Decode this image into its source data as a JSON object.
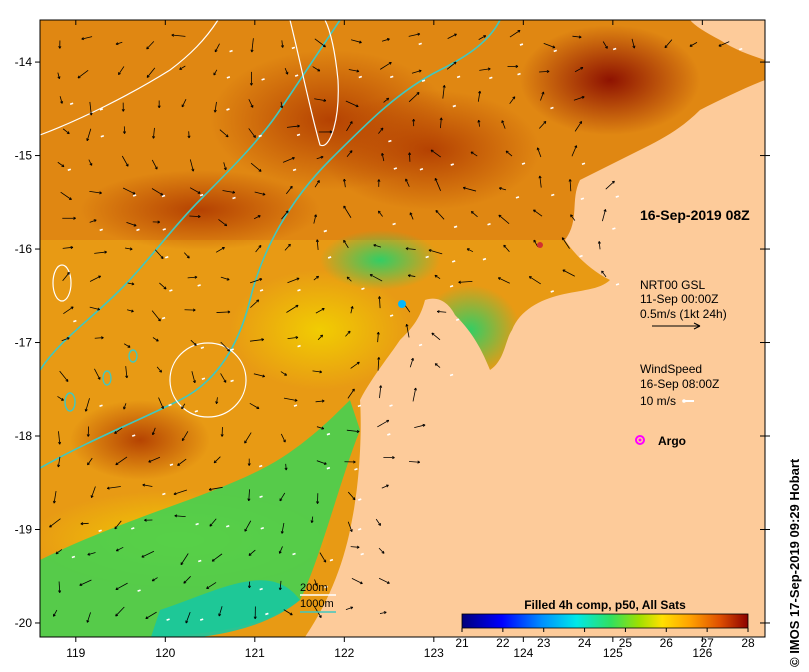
{
  "map": {
    "lon_ticks": [
      "119",
      "120",
      "121",
      "122",
      "123",
      "124",
      "125",
      "126"
    ],
    "lat_ticks": [
      "-14",
      "-15",
      "-16",
      "-17",
      "-18",
      "-19",
      "-20"
    ],
    "lon_range": [
      118.6,
      126.7
    ],
    "lat_range": [
      -20.15,
      -13.55
    ]
  },
  "annotations": {
    "date_title": "16-Sep-2019 08Z",
    "current_title": "NRT00 GSL",
    "current_time": "11-Sep 00:00Z",
    "current_scale": "0.5m/s (1kt 24h)",
    "wind_title": "WindSpeed",
    "wind_time": "16-Sep 08:00Z",
    "wind_scale": "10 m/s",
    "argo_label": "Argo"
  },
  "bathy_legend": {
    "contour_200": "200m",
    "contour_1000": "1000m"
  },
  "colorbar": {
    "title": "Filled 4h comp, p50, All Sats",
    "ticks": [
      "21",
      "22",
      "23",
      "24",
      "25",
      "26",
      "27",
      "28"
    ],
    "min": 21,
    "max": 28
  },
  "credit": "© IMOS 17-Sep-2019 09:29 Hobart",
  "colors": {
    "land": "#fdcb9a",
    "contour_200": "#ffffff",
    "contour_1000": "#40c8c0",
    "argo": "#ff00ff"
  }
}
